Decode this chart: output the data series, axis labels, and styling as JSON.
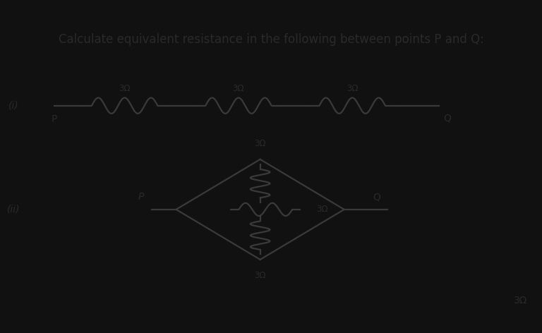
{
  "title": "Calculate equivalent resistance in the following between points P and Q:",
  "title_fontsize": 12,
  "title_color": "#2a2a2a",
  "background_color": "#d4cfc6",
  "outer_background": "#111111",
  "circuit1_label": "(i)",
  "circuit2_label": "(ii)",
  "resistor_value": "3Ω",
  "point_P": "P",
  "point_Q": "Q",
  "bottom_right_label": "3Ω",
  "line_color": "#3a3a3a",
  "text_color": "#2a2a2a",
  "fig_width": 7.68,
  "fig_height": 4.72,
  "dpi": 100
}
